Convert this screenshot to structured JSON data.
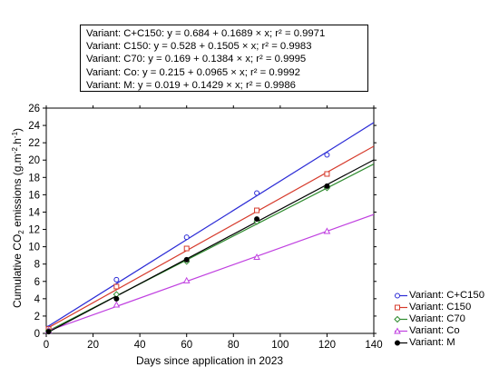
{
  "chart_data": {
    "type": "scatter",
    "xlabel": "Days since application in 2023",
    "ylabel_parts": {
      "main": "Cumulative CO",
      "sub": "2",
      "rest": " emissions (g.m",
      "sup1": "-2",
      "mid": ".h",
      "sup2": "-1",
      "end": ")"
    },
    "xlim": [
      0,
      140
    ],
    "ylim": [
      0,
      26
    ],
    "xticks": [
      "0",
      "20",
      "40",
      "60",
      "80",
      "100",
      "120",
      "140"
    ],
    "yticks": [
      "0",
      "2",
      "4",
      "6",
      "8",
      "10",
      "12",
      "14",
      "16",
      "18",
      "20",
      "22",
      "24",
      "26"
    ],
    "grid": false,
    "legend_position": "bottom-right",
    "equations": [
      "Variant: C+C150: y = 0.684 + 0.1689 × x; r² = 0.9971",
      "Variant: C150: y = 0.528 + 0.1505 × x; r² = 0.9983",
      "Variant: C70: y = 0.169 + 0.1384 × x; r² = 0.9995",
      "Variant: Co: y = 0.215 + 0.0965 × x; r² = 0.9992",
      "Variant: M: y = 0.019 + 0.1429 × x; r² = 0.9986"
    ],
    "series": [
      {
        "name": "Variant: C+C150",
        "color": "#2b2bd6",
        "marker": "circle",
        "intercept": 0.684,
        "slope": 0.1689,
        "x": [
          1,
          30,
          60,
          90,
          120
        ],
        "y": [
          0.6,
          6.2,
          11.1,
          16.2,
          20.6
        ]
      },
      {
        "name": "Variant: C150",
        "color": "#d63a2b",
        "marker": "square",
        "intercept": 0.528,
        "slope": 0.1505,
        "x": [
          1,
          30,
          60,
          90,
          120
        ],
        "y": [
          0.5,
          5.4,
          9.8,
          14.2,
          18.4
        ]
      },
      {
        "name": "Variant: C70",
        "color": "#2e8b2e",
        "marker": "diamond",
        "intercept": 0.169,
        "slope": 0.1384,
        "x": [
          1,
          30,
          60,
          90,
          120
        ],
        "y": [
          0.3,
          4.5,
          8.3,
          12.9,
          16.8
        ]
      },
      {
        "name": "Variant: Co",
        "color": "#c040e0",
        "marker": "triangle",
        "intercept": 0.215,
        "slope": 0.0965,
        "x": [
          1,
          30,
          60,
          90,
          120
        ],
        "y": [
          0.3,
          3.3,
          6.1,
          8.8,
          11.8
        ]
      },
      {
        "name": "Variant: M",
        "color": "#000000",
        "marker": "filledcircle",
        "intercept": 0.019,
        "slope": 0.1429,
        "x": [
          1,
          30,
          60,
          90,
          120
        ],
        "y": [
          0.2,
          4.0,
          8.5,
          13.2,
          17.0
        ]
      }
    ]
  }
}
